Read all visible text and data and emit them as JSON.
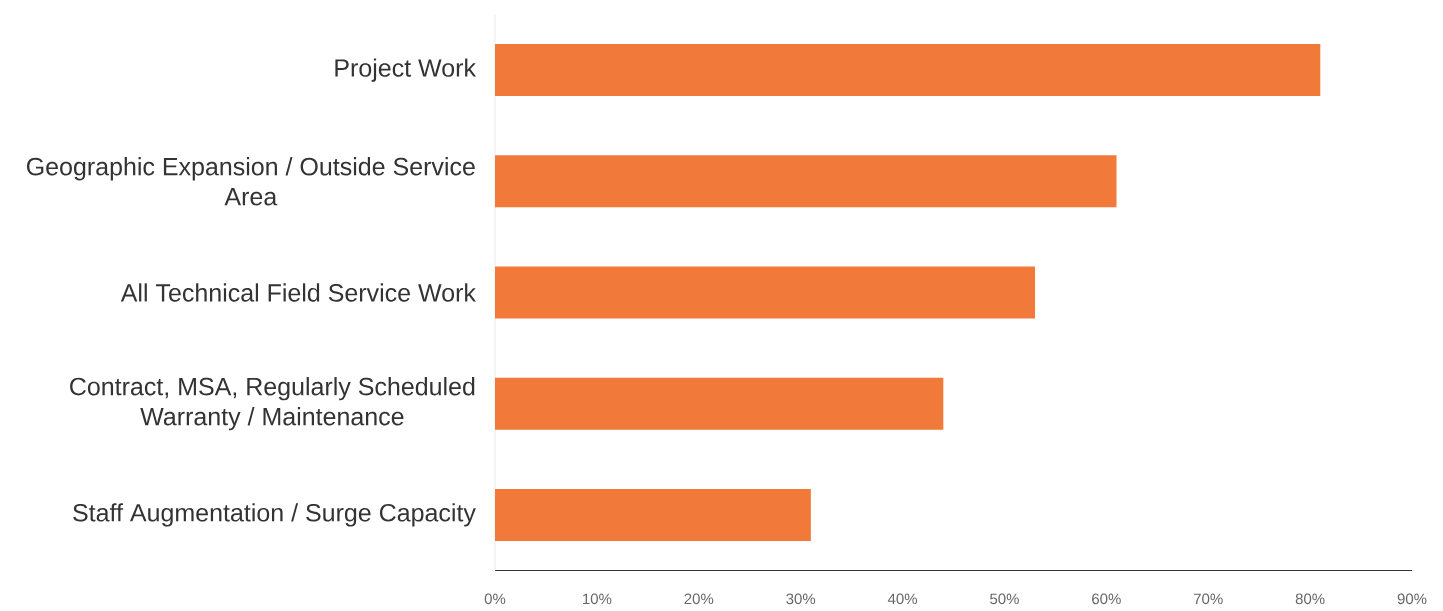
{
  "chart_data": {
    "type": "bar",
    "orientation": "horizontal",
    "categories": [
      "Project Work",
      "Geographic Expansion / Outside Service Area",
      "All Technical Field Service Work",
      "Contract, MSA, Regularly Scheduled Warranty / Maintenance",
      "Staff Augmentation / Surge Capacity"
    ],
    "values": [
      81,
      61,
      53,
      44,
      31
    ],
    "color": "#f1793a",
    "xlim": [
      0,
      90
    ],
    "xticks": [
      {
        "value": 0,
        "label": "0%"
      },
      {
        "value": 10,
        "label": "10%"
      },
      {
        "value": 20,
        "label": "20%"
      },
      {
        "value": 30,
        "label": "30%"
      },
      {
        "value": 40,
        "label": "40%"
      },
      {
        "value": 50,
        "label": "50%"
      },
      {
        "value": 60,
        "label": "60%"
      },
      {
        "value": 70,
        "label": "70%"
      },
      {
        "value": 80,
        "label": "80%"
      },
      {
        "value": 90,
        "label": "90%"
      }
    ],
    "grid": false
  }
}
